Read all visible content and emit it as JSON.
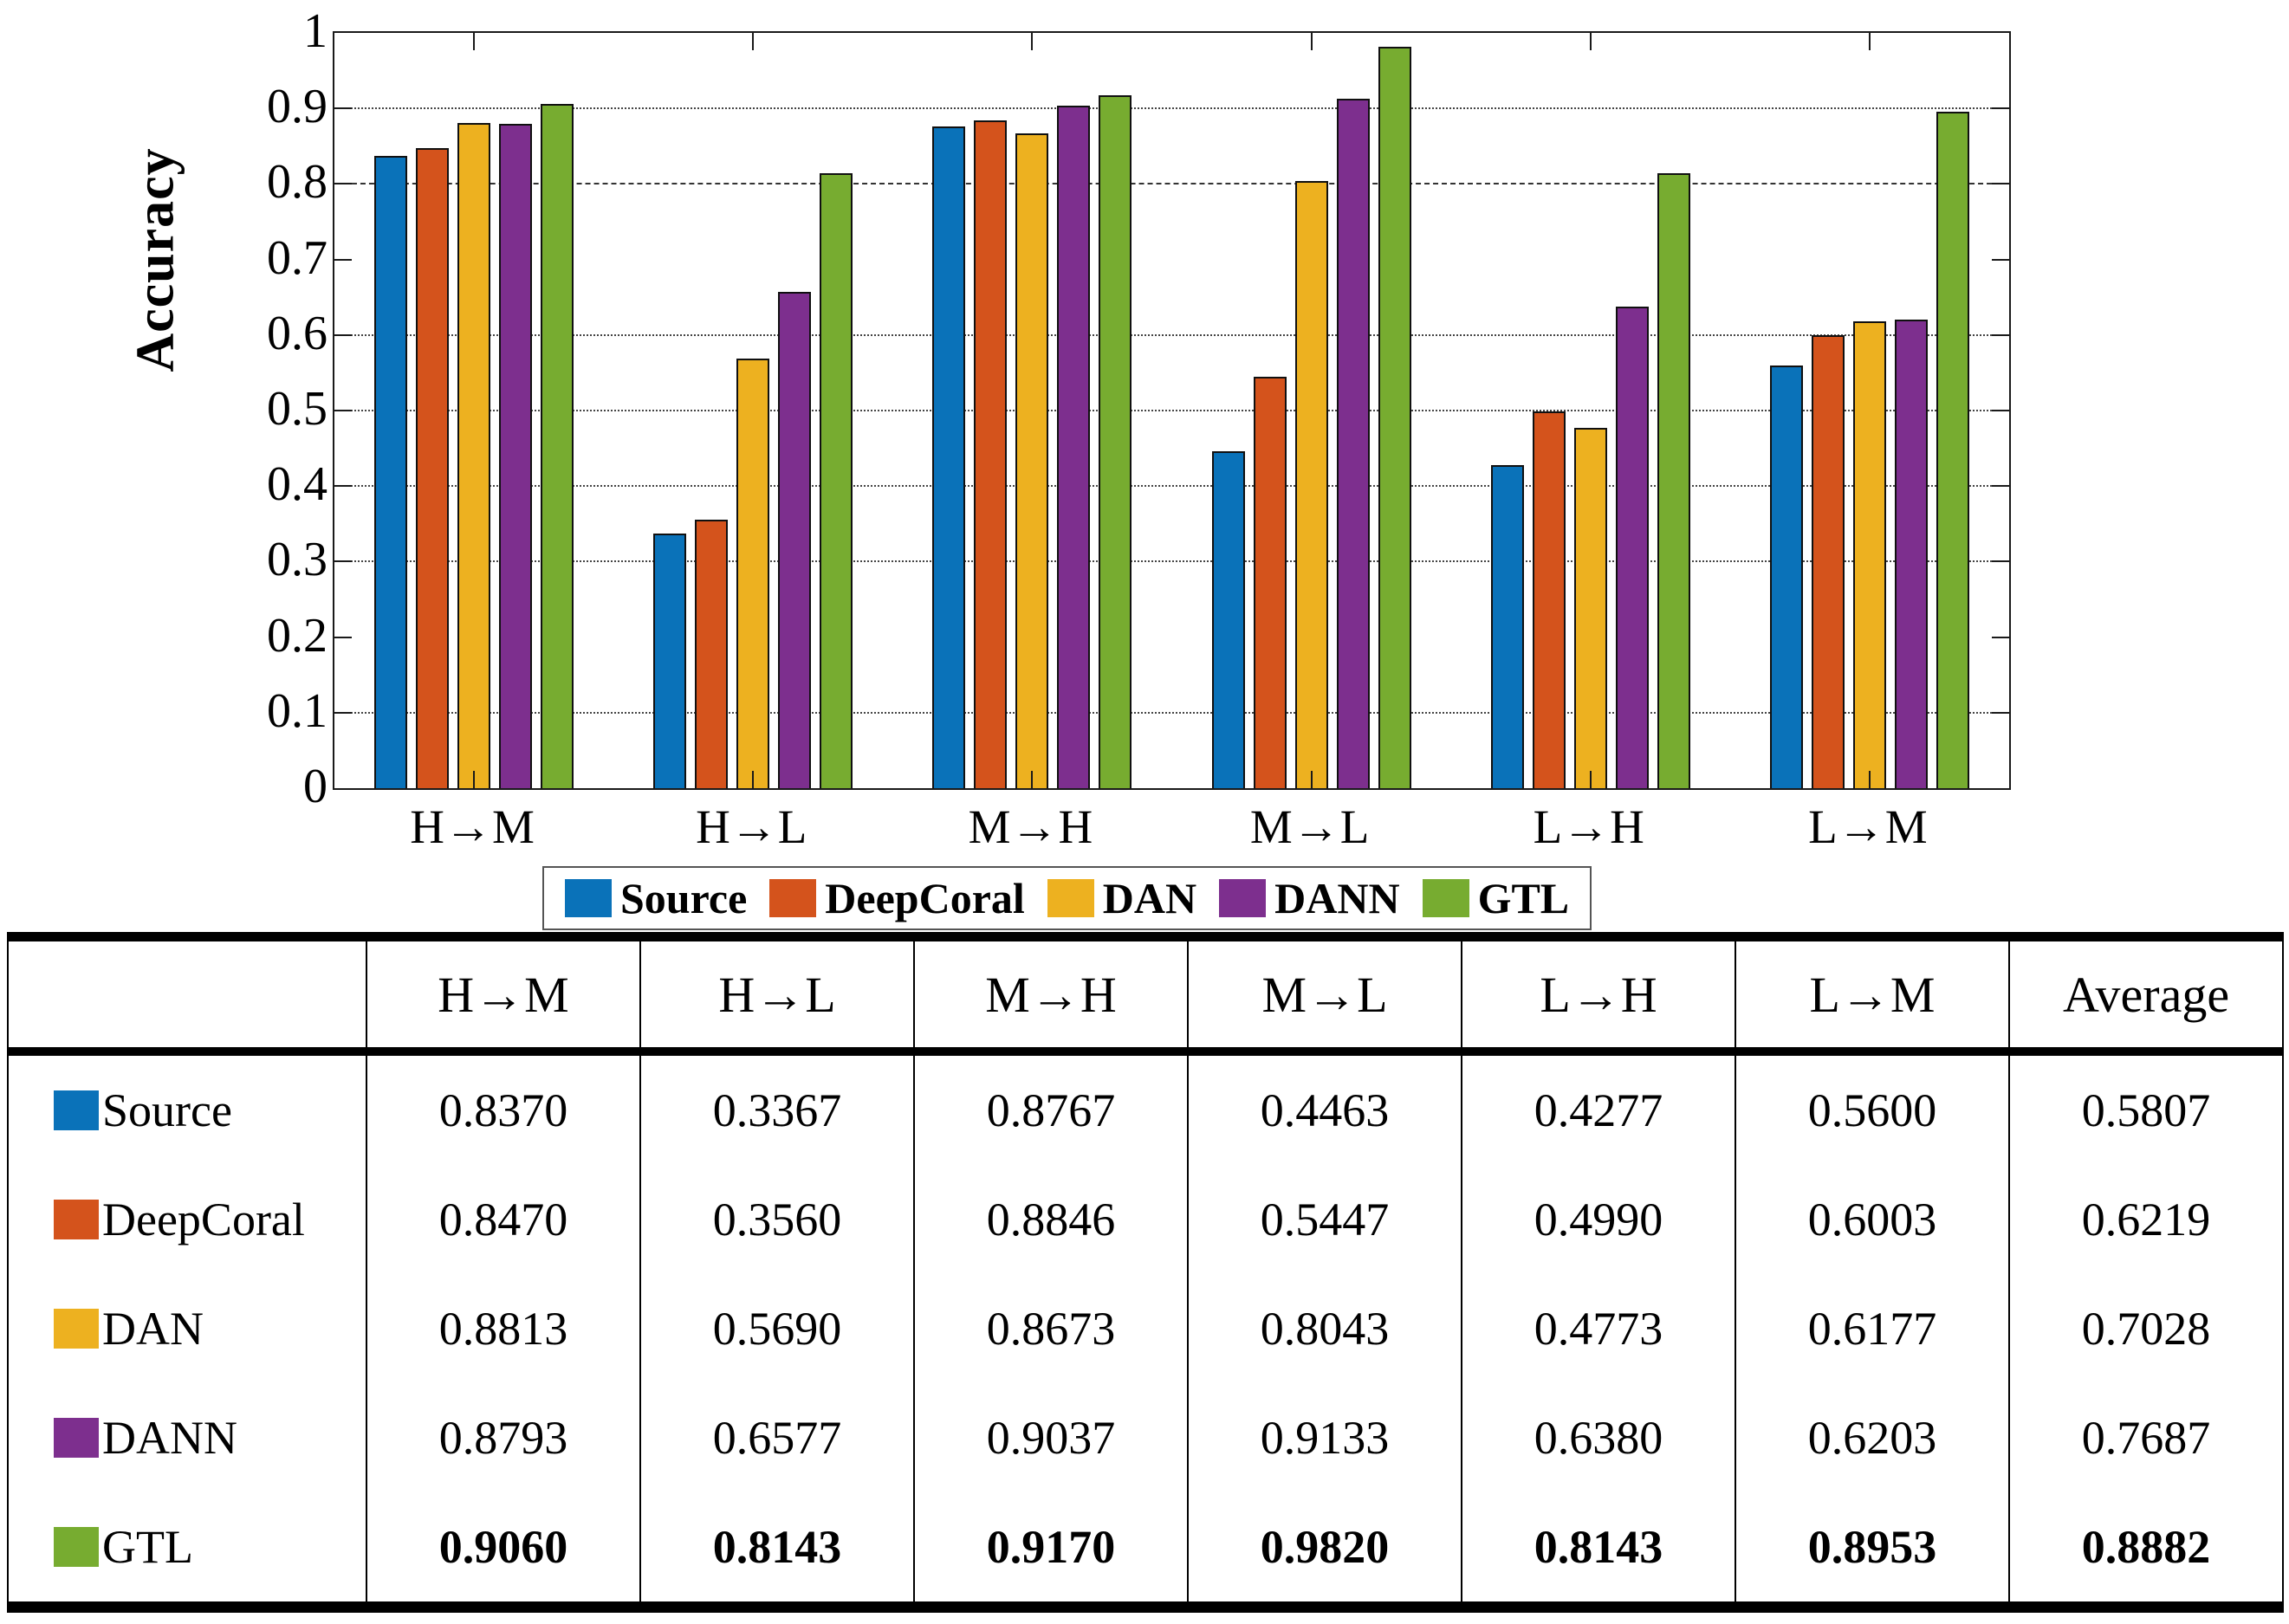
{
  "chart_data": {
    "type": "bar",
    "title": "",
    "xlabel": "",
    "ylabel": "Accuracy",
    "categories": [
      "H→M",
      "H→L",
      "M→H",
      "M→L",
      "L→H",
      "L→M"
    ],
    "series": [
      {
        "name": "Source",
        "color": "#0A72B9",
        "values": [
          0.837,
          0.3367,
          0.8767,
          0.4463,
          0.4277,
          0.56
        ]
      },
      {
        "name": "DeepCoral",
        "color": "#D4531C",
        "values": [
          0.847,
          0.356,
          0.8846,
          0.5447,
          0.499,
          0.6003
        ]
      },
      {
        "name": "DAN",
        "color": "#EDB120",
        "values": [
          0.8813,
          0.569,
          0.8673,
          0.8043,
          0.4773,
          0.6177
        ]
      },
      {
        "name": "DANN",
        "color": "#7D2F8E",
        "values": [
          0.8793,
          0.6577,
          0.9037,
          0.9133,
          0.638,
          0.6203
        ]
      },
      {
        "name": "GTL",
        "color": "#77AC30",
        "values": [
          0.906,
          0.8143,
          0.917,
          0.982,
          0.8143,
          0.8953
        ]
      }
    ],
    "ylim": [
      0,
      1
    ],
    "yticks": [
      0,
      0.1,
      0.2,
      0.3,
      0.4,
      0.5,
      0.6,
      0.7,
      0.8,
      0.9,
      1
    ],
    "ytick_labels": [
      "0",
      "0.1",
      "0.2",
      "0.3",
      "0.4",
      "0.5",
      "0.6",
      "0.7",
      "0.8",
      "0.9",
      "1"
    ],
    "gridlines": [
      {
        "v": 0.9,
        "style": "dotted"
      },
      {
        "v": 0.8,
        "style": "dashed"
      },
      {
        "v": 0.6,
        "style": "dotted"
      },
      {
        "v": 0.5,
        "style": "dotted"
      },
      {
        "v": 0.4,
        "style": "dotted"
      },
      {
        "v": 0.3,
        "style": "dotted"
      },
      {
        "v": 0.1,
        "style": "dotted"
      }
    ],
    "grid": true,
    "legend_position": "below",
    "bar_edge_color": "#101010"
  },
  "table": {
    "header": [
      "",
      "H→M",
      "H→L",
      "M→H",
      "M→L",
      "L→H",
      "L→M",
      "Average"
    ],
    "rows": [
      {
        "label": "Source",
        "swatch": "#0A72B9",
        "bold": false,
        "values": [
          "0.8370",
          "0.3367",
          "0.8767",
          "0.4463",
          "0.4277",
          "0.5600",
          "0.5807"
        ]
      },
      {
        "label": "DeepCoral",
        "swatch": "#D4531C",
        "bold": false,
        "values": [
          "0.8470",
          "0.3560",
          "0.8846",
          "0.5447",
          "0.4990",
          "0.6003",
          "0.6219"
        ]
      },
      {
        "label": "DAN",
        "swatch": "#EDB120",
        "bold": false,
        "values": [
          "0.8813",
          "0.5690",
          "0.8673",
          "0.8043",
          "0.4773",
          "0.6177",
          "0.7028"
        ]
      },
      {
        "label": "DANN",
        "swatch": "#7D2F8E",
        "bold": false,
        "values": [
          "0.8793",
          "0.6577",
          "0.9037",
          "0.9133",
          "0.6380",
          "0.6203",
          "0.7687"
        ]
      },
      {
        "label": "GTL",
        "swatch": "#77AC30",
        "bold": true,
        "values": [
          "0.9060",
          "0.8143",
          "0.9170",
          "0.9820",
          "0.8143",
          "0.8953",
          "0.8882"
        ]
      }
    ]
  }
}
